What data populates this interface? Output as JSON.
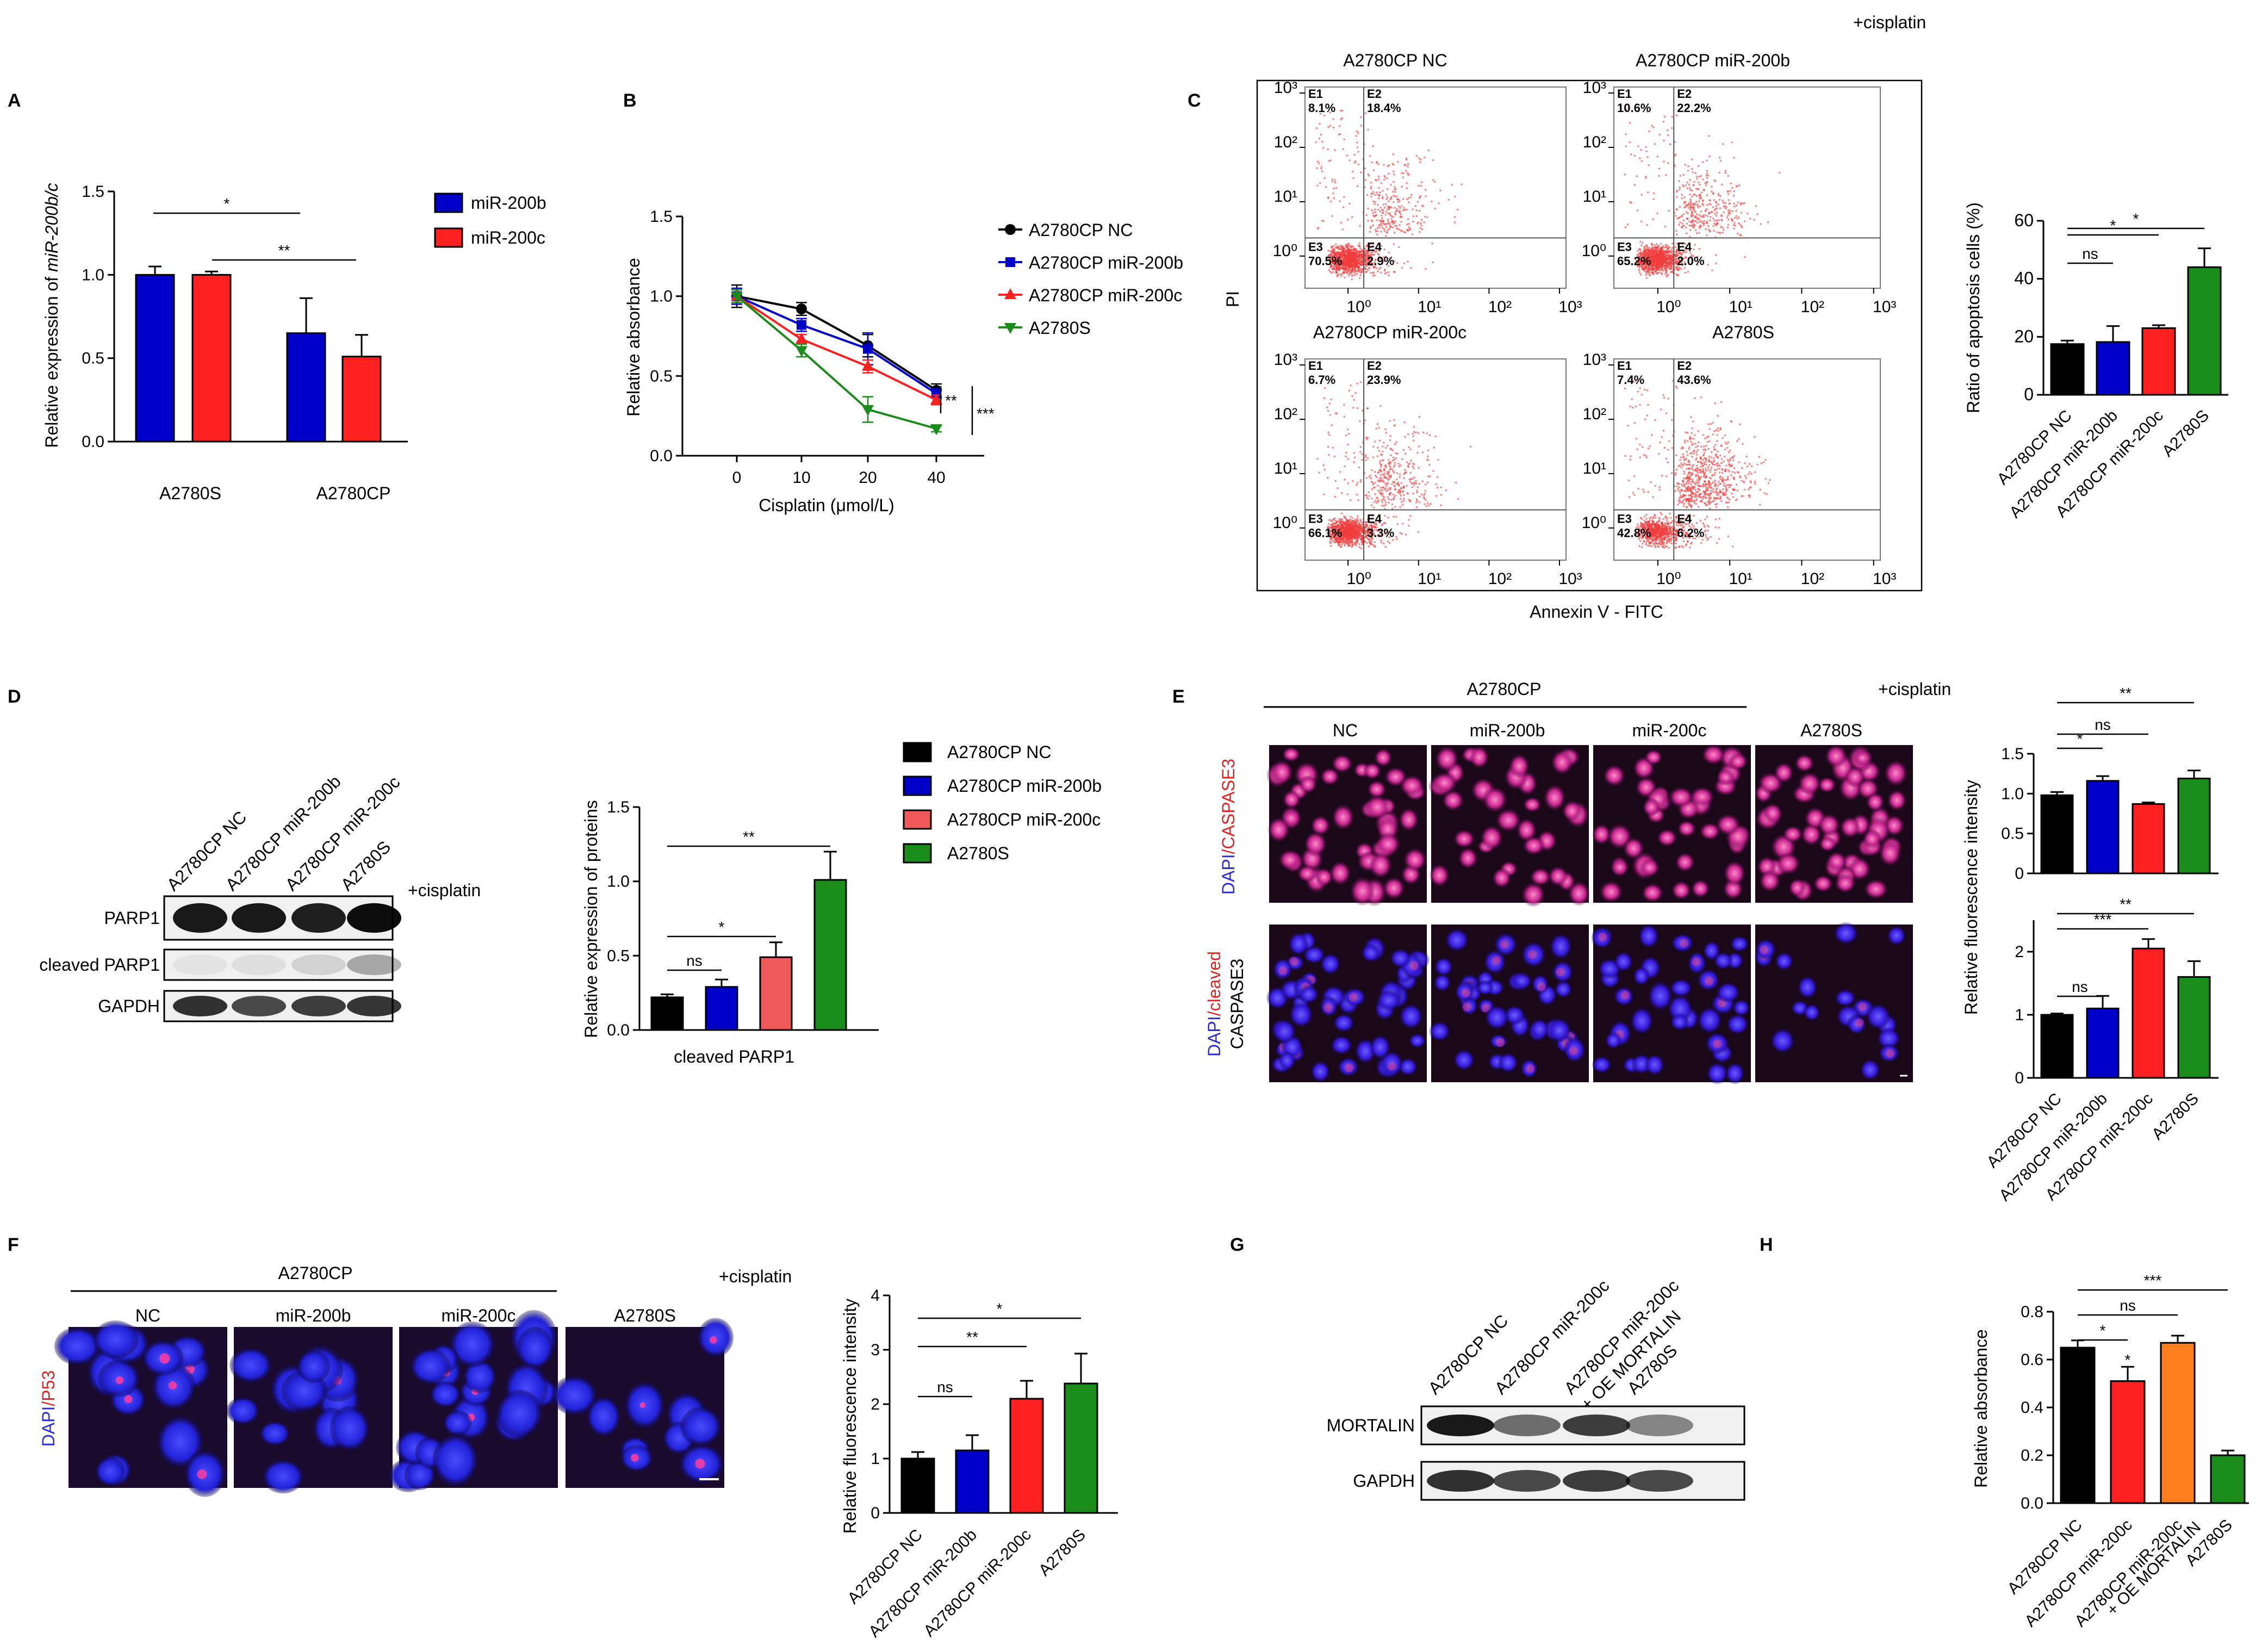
{
  "panels": {
    "A": "A",
    "B": "B",
    "C": "C",
    "D": "D",
    "E": "E",
    "F": "F",
    "G": "G",
    "H": "H"
  },
  "cisplatin_label": "+cisplatin",
  "colors": {
    "black": "#000000",
    "blue": "#0000c8",
    "red": "#ff2020",
    "green": "#1a8c1a",
    "orange": "#ff7f1e",
    "lightred": "#f0595a"
  },
  "chart_data": [
    {
      "id": "A",
      "type": "bar",
      "ylabel": "Relative expression of miR-200b/c",
      "categories": [
        "A2780S",
        "A2780CP"
      ],
      "series": [
        {
          "name": "miR-200b",
          "color": "#0000c8",
          "values": [
            1.0,
            0.65
          ],
          "errors": [
            0.05,
            0.21
          ]
        },
        {
          "name": "miR-200c",
          "color": "#ff2020",
          "values": [
            1.0,
            0.51
          ],
          "errors": [
            0.02,
            0.13
          ]
        }
      ],
      "ylim": [
        0,
        1.5
      ],
      "yticks": [
        "0.0",
        "0.5",
        "1.0",
        "1.5"
      ],
      "significance": [
        "*",
        "**"
      ]
    },
    {
      "id": "B",
      "type": "line",
      "xlabel": "Cisplatin (μmol/L)",
      "ylabel": "Relative absorbance",
      "x": [
        0,
        10,
        20,
        40
      ],
      "xticks": [
        "0",
        "10",
        "20",
        "40"
      ],
      "yticks": [
        "0.0",
        "0.5",
        "1.0",
        "1.5"
      ],
      "ylim": [
        0,
        1.5
      ],
      "series": [
        {
          "name": "A2780CP NC",
          "color": "#000000",
          "marker": "circle",
          "values": [
            1.0,
            0.92,
            0.69,
            0.41
          ],
          "errors": [
            0.07,
            0.04,
            0.07,
            0.04
          ]
        },
        {
          "name": "A2780CP miR-200b",
          "color": "#0000c8",
          "marker": "square",
          "values": [
            1.0,
            0.82,
            0.67,
            0.39
          ],
          "errors": [
            0.05,
            0.04,
            0.1,
            0.03
          ]
        },
        {
          "name": "A2780CP miR-200c",
          "color": "#ff2020",
          "marker": "triangle",
          "values": [
            1.0,
            0.73,
            0.56,
            0.35
          ],
          "errors": [
            0.04,
            0.03,
            0.04,
            0.03
          ]
        },
        {
          "name": "A2780S",
          "color": "#1a8c1a",
          "marker": "triangle-down",
          "values": [
            1.0,
            0.66,
            0.29,
            0.17
          ],
          "errors": [
            0.04,
            0.04,
            0.08,
            0.02
          ]
        }
      ],
      "significance": [
        "**",
        "***"
      ]
    },
    {
      "id": "C",
      "type": "bar",
      "ylabel": "Ratio of apoptosis cells (%)",
      "categories": [
        "A2780CP NC",
        "A2780CP miR-200b",
        "A2780CP miR-200c",
        "A2780S"
      ],
      "values": [
        17.5,
        18.2,
        23.0,
        44.0
      ],
      "errors": [
        1.2,
        5.5,
        1.0,
        6.5
      ],
      "colors": [
        "#000000",
        "#0000c8",
        "#ff2020",
        "#1a8c1a"
      ],
      "ylim": [
        0,
        60
      ],
      "yticks": [
        "0",
        "20",
        "40",
        "60"
      ],
      "significance": [
        "ns",
        "*",
        "*"
      ]
    },
    {
      "id": "D",
      "type": "bar",
      "xlabel": "cleaved PARP1",
      "ylabel": "Relative expression of proteins",
      "categories": [
        "A2780CP NC",
        "A2780CP miR-200b",
        "A2780CP miR-200c",
        "A2780S"
      ],
      "values": [
        0.22,
        0.29,
        0.49,
        1.01
      ],
      "errors": [
        0.02,
        0.05,
        0.1,
        0.19
      ],
      "colors": [
        "#000000",
        "#0000c8",
        "#f0595a",
        "#1a8c1a"
      ],
      "ylim": [
        0,
        1.5
      ],
      "yticks": [
        "0.0",
        "0.5",
        "1.0",
        "1.5"
      ],
      "significance": [
        "ns",
        "*",
        "**"
      ]
    },
    {
      "id": "E1",
      "type": "bar",
      "categories": [
        "A2780CP NC",
        "A2780CP miR-200b",
        "A2780CP miR-200c",
        "A2780S"
      ],
      "values": [
        0.98,
        1.16,
        0.87,
        1.19
      ],
      "errors": [
        0.04,
        0.06,
        0.02,
        0.1
      ],
      "colors": [
        "#000000",
        "#0000c8",
        "#ff2020",
        "#1a8c1a"
      ],
      "ylim": [
        0,
        1.5
      ],
      "yticks": [
        "0",
        "0.5",
        "1.0",
        "1.5"
      ],
      "significance": [
        "*",
        "ns",
        "**"
      ]
    },
    {
      "id": "E2",
      "type": "bar",
      "categories": [
        "A2780CP NC",
        "A2780CP miR-200b",
        "A2780CP miR-200c",
        "A2780S"
      ],
      "values": [
        1.0,
        1.1,
        2.05,
        1.6
      ],
      "errors": [
        0.02,
        0.2,
        0.15,
        0.25
      ],
      "colors": [
        "#000000",
        "#0000c8",
        "#ff2020",
        "#1a8c1a"
      ],
      "ylim": [
        0,
        2.5
      ],
      "yticks": [
        "0",
        "1",
        "2"
      ],
      "significance": [
        "ns",
        "***",
        "**"
      ]
    },
    {
      "id": "F",
      "type": "bar",
      "ylabel": "Relative fluorescence intensity",
      "categories": [
        "A2780CP NC",
        "A2780CP miR-200b",
        "A2780CP miR-200c",
        "A2780S"
      ],
      "values": [
        1.0,
        1.15,
        2.1,
        2.38
      ],
      "errors": [
        0.12,
        0.28,
        0.33,
        0.55
      ],
      "colors": [
        "#000000",
        "#0000c8",
        "#ff2020",
        "#1a8c1a"
      ],
      "ylim": [
        0,
        4
      ],
      "yticks": [
        "0",
        "1",
        "2",
        "3",
        "4"
      ],
      "significance": [
        "ns",
        "**",
        "*"
      ]
    },
    {
      "id": "H",
      "type": "bar",
      "ylabel": "Relative absorbance",
      "categories": [
        "A2780CP NC",
        "A2780CP miR-200c",
        "A2780CP miR-200c\n+ OE MORTALIN",
        "A2780S"
      ],
      "values": [
        0.65,
        0.51,
        0.67,
        0.2
      ],
      "errors": [
        0.03,
        0.06,
        0.03,
        0.02
      ],
      "colors": [
        "#000000",
        "#ff2020",
        "#ff7f1e",
        "#1a8c1a"
      ],
      "ylim": [
        0,
        0.8
      ],
      "yticks": [
        "0.0",
        "0.2",
        "0.4",
        "0.6",
        "0.8"
      ],
      "significance": [
        "*",
        "*",
        "ns",
        "***"
      ]
    }
  ],
  "flow": {
    "ylabel": "PI",
    "xlabel": "Annexin V - FITC",
    "ticks": [
      "10⁰",
      "10¹",
      "10²",
      "10³"
    ],
    "plots": [
      {
        "title": "A2780CP NC",
        "E1": "E1\n8.1%",
        "E2": "E2\n18.4%",
        "E3": "E3\n70.5%",
        "E4": "E4\n2.9%"
      },
      {
        "title": "A2780CP miR-200b",
        "E1": "E1\n10.6%",
        "E2": "E2\n22.2%",
        "E3": "E3\n65.2%",
        "E4": "E4\n2.0%"
      },
      {
        "title": "A2780CP miR-200c",
        "E1": "E1\n6.7%",
        "E2": "E2\n23.9%",
        "E3": "E3\n66.1%",
        "E4": "E4\n3.3%"
      },
      {
        "title": "A2780S",
        "E1": "E1\n7.4%",
        "E2": "E2\n43.6%",
        "E3": "E3\n42.8%",
        "E4": "E4\n6.2%"
      }
    ]
  },
  "western_D": {
    "lanes": [
      "A2780CP NC",
      "A2780CP miR-200b",
      "A2780CP miR-200c",
      "A2780S"
    ],
    "rows": [
      "PARP1",
      "cleaved PARP1",
      "GAPDH"
    ]
  },
  "legend_D": [
    "A2780CP NC",
    "A2780CP miR-200b",
    "A2780CP miR-200c",
    "A2780S"
  ],
  "micro_E": {
    "group": "A2780CP",
    "columns": [
      "NC",
      "miR-200b",
      "miR-200c",
      "A2780S"
    ],
    "row1_label": {
      "a": "DAPI",
      "b": "/CASPASE3"
    },
    "row2_label": {
      "a": "DAPI",
      "b": "/cleaved",
      "c": "CASPASE3"
    },
    "ylabel": "Relative fluorescence intensity"
  },
  "micro_F": {
    "group": "A2780CP",
    "columns": [
      "NC",
      "miR-200b",
      "miR-200c",
      "A2780S"
    ],
    "row_label": {
      "a": "DAPI",
      "b": "/P53"
    }
  },
  "western_G": {
    "lanes": [
      "A2780CP NC",
      "A2780CP miR-200c",
      "A2780CP miR-200c\n+ OE MORTALIN",
      "A2780S"
    ],
    "rows": [
      "MORTALIN",
      "GAPDH"
    ]
  }
}
